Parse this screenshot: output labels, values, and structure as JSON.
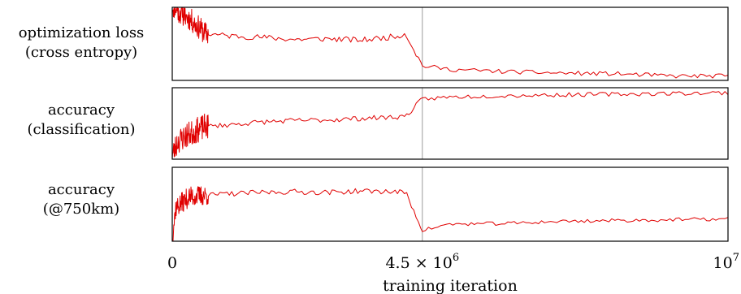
{
  "chart_data": {
    "type": "line",
    "xlabel": "training iteration",
    "x_range": [
      0,
      10000000
    ],
    "xticks": [
      {
        "value": 0,
        "label": "0"
      },
      {
        "value": 4500000,
        "label": "4.5 × 10^6"
      },
      {
        "value": 10000000,
        "label": "10^7"
      }
    ],
    "vline_x": 4500000,
    "line_color": "#e00000",
    "vline_color": "#9a9a9a",
    "panels": [
      {
        "label_lines": [
          "optimization loss",
          "(cross entropy)"
        ],
        "y_range": [
          0,
          1
        ],
        "anchors": [
          [
            0,
            1.02
          ],
          [
            100000,
            0.95
          ],
          [
            300000,
            0.85
          ],
          [
            600000,
            0.64
          ],
          [
            1000000,
            0.61
          ],
          [
            1600000,
            0.59
          ],
          [
            2200000,
            0.56
          ],
          [
            2800000,
            0.57
          ],
          [
            3400000,
            0.55
          ],
          [
            4000000,
            0.6
          ],
          [
            4200000,
            0.64
          ],
          [
            4500000,
            0.2
          ],
          [
            5000000,
            0.15
          ],
          [
            6000000,
            0.12
          ],
          [
            7000000,
            0.1
          ],
          [
            8000000,
            0.09
          ],
          [
            9000000,
            0.06
          ],
          [
            10000000,
            0.06
          ]
        ],
        "noise": [
          0.16,
          0.04,
          0.03
        ],
        "seed": 11
      },
      {
        "label_lines": [
          "accuracy",
          "(classification)"
        ],
        "y_range": [
          0,
          1
        ],
        "anchors": [
          [
            0,
            0.05
          ],
          [
            100000,
            0.25
          ],
          [
            300000,
            0.35
          ],
          [
            600000,
            0.46
          ],
          [
            1000000,
            0.48
          ],
          [
            1600000,
            0.52
          ],
          [
            2200000,
            0.54
          ],
          [
            2800000,
            0.55
          ],
          [
            3400000,
            0.57
          ],
          [
            4000000,
            0.59
          ],
          [
            4200000,
            0.6
          ],
          [
            4500000,
            0.84
          ],
          [
            5000000,
            0.87
          ],
          [
            6000000,
            0.89
          ],
          [
            7000000,
            0.9
          ],
          [
            8000000,
            0.91
          ],
          [
            9000000,
            0.92
          ],
          [
            10000000,
            0.93
          ]
        ],
        "noise": [
          0.18,
          0.035,
          0.03
        ],
        "seed": 23
      },
      {
        "label_lines": [
          "accuracy",
          "(@750km)"
        ],
        "y_range": [
          0,
          1
        ],
        "anchors": [
          [
            0,
            0.0
          ],
          [
            60000,
            0.45
          ],
          [
            300000,
            0.6
          ],
          [
            600000,
            0.62
          ],
          [
            1000000,
            0.64
          ],
          [
            1600000,
            0.66
          ],
          [
            2200000,
            0.67
          ],
          [
            2800000,
            0.66
          ],
          [
            3400000,
            0.68
          ],
          [
            4000000,
            0.67
          ],
          [
            4200000,
            0.66
          ],
          [
            4500000,
            0.15
          ],
          [
            5000000,
            0.23
          ],
          [
            6000000,
            0.24
          ],
          [
            7000000,
            0.27
          ],
          [
            8000000,
            0.28
          ],
          [
            9000000,
            0.29
          ],
          [
            10000000,
            0.3
          ]
        ],
        "noise": [
          0.14,
          0.035,
          0.025
        ],
        "seed": 37
      }
    ]
  }
}
